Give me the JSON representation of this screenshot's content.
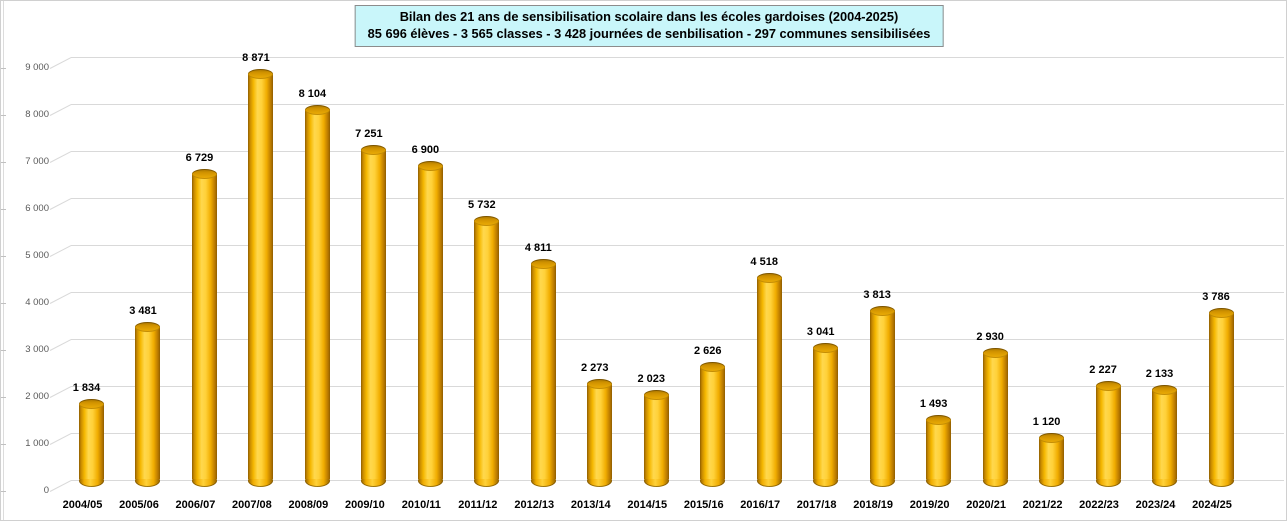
{
  "title": {
    "line1": "Bilan des 21 ans de sensibilisation scolaire dans les écoles gardoises (2004-2025)",
    "line2": "85 696 élèves - 3 565 classes - 3 428 journées de senbilisation - 297 communes sensibilisées"
  },
  "chart_data": {
    "type": "bar",
    "title": "Bilan des 21 ans de sensibilisation scolaire dans les écoles gardoises (2004-2025)",
    "subtitle": "85 696 élèves - 3 565 classes - 3 428 journées de senbilisation - 297 communes sensibilisées",
    "categories": [
      "2004/05",
      "2005/06",
      "2006/07",
      "2007/08",
      "2008/09",
      "2009/10",
      "2010/11",
      "2011/12",
      "2012/13",
      "2013/14",
      "2014/15",
      "2015/16",
      "2016/17",
      "2017/18",
      "2018/19",
      "2019/20",
      "2020/21",
      "2021/22",
      "2022/23",
      "2023/24",
      "2024/25"
    ],
    "values": [
      1834,
      3481,
      6729,
      8871,
      8104,
      7251,
      6900,
      5732,
      4811,
      2273,
      2023,
      2626,
      4518,
      3041,
      3813,
      1493,
      2930,
      1120,
      2227,
      2133,
      3786
    ],
    "value_labels": [
      "1 834",
      "3 481",
      "6 729",
      "8 871",
      "8 104",
      "7 251",
      "6 900",
      "5 732",
      "4 811",
      "2 273",
      "2 023",
      "2 626",
      "4 518",
      "3 041",
      "3 813",
      "1 493",
      "2 930",
      "1 120",
      "2 227",
      "2 133",
      "3 786"
    ],
    "y_ticks": [
      "0",
      "1 000",
      "2 000",
      "3 000",
      "4 000",
      "5 000",
      "6 000",
      "7 000",
      "8 000",
      "9 000"
    ],
    "ylim": [
      0,
      9000
    ],
    "xlabel": "",
    "ylabel": "",
    "grid": "horizontal",
    "legend": "none",
    "style": "3d-cylinder",
    "colors": {
      "bar": "#FFC000",
      "bar_edge": "#8F5E00",
      "gridline": "#D9D9D9",
      "title_background": "#CCFFFF",
      "title_border": "#8C8C8C",
      "axis_text": "#595959",
      "label_text": "#000000",
      "background": "#FFFFFF"
    }
  }
}
